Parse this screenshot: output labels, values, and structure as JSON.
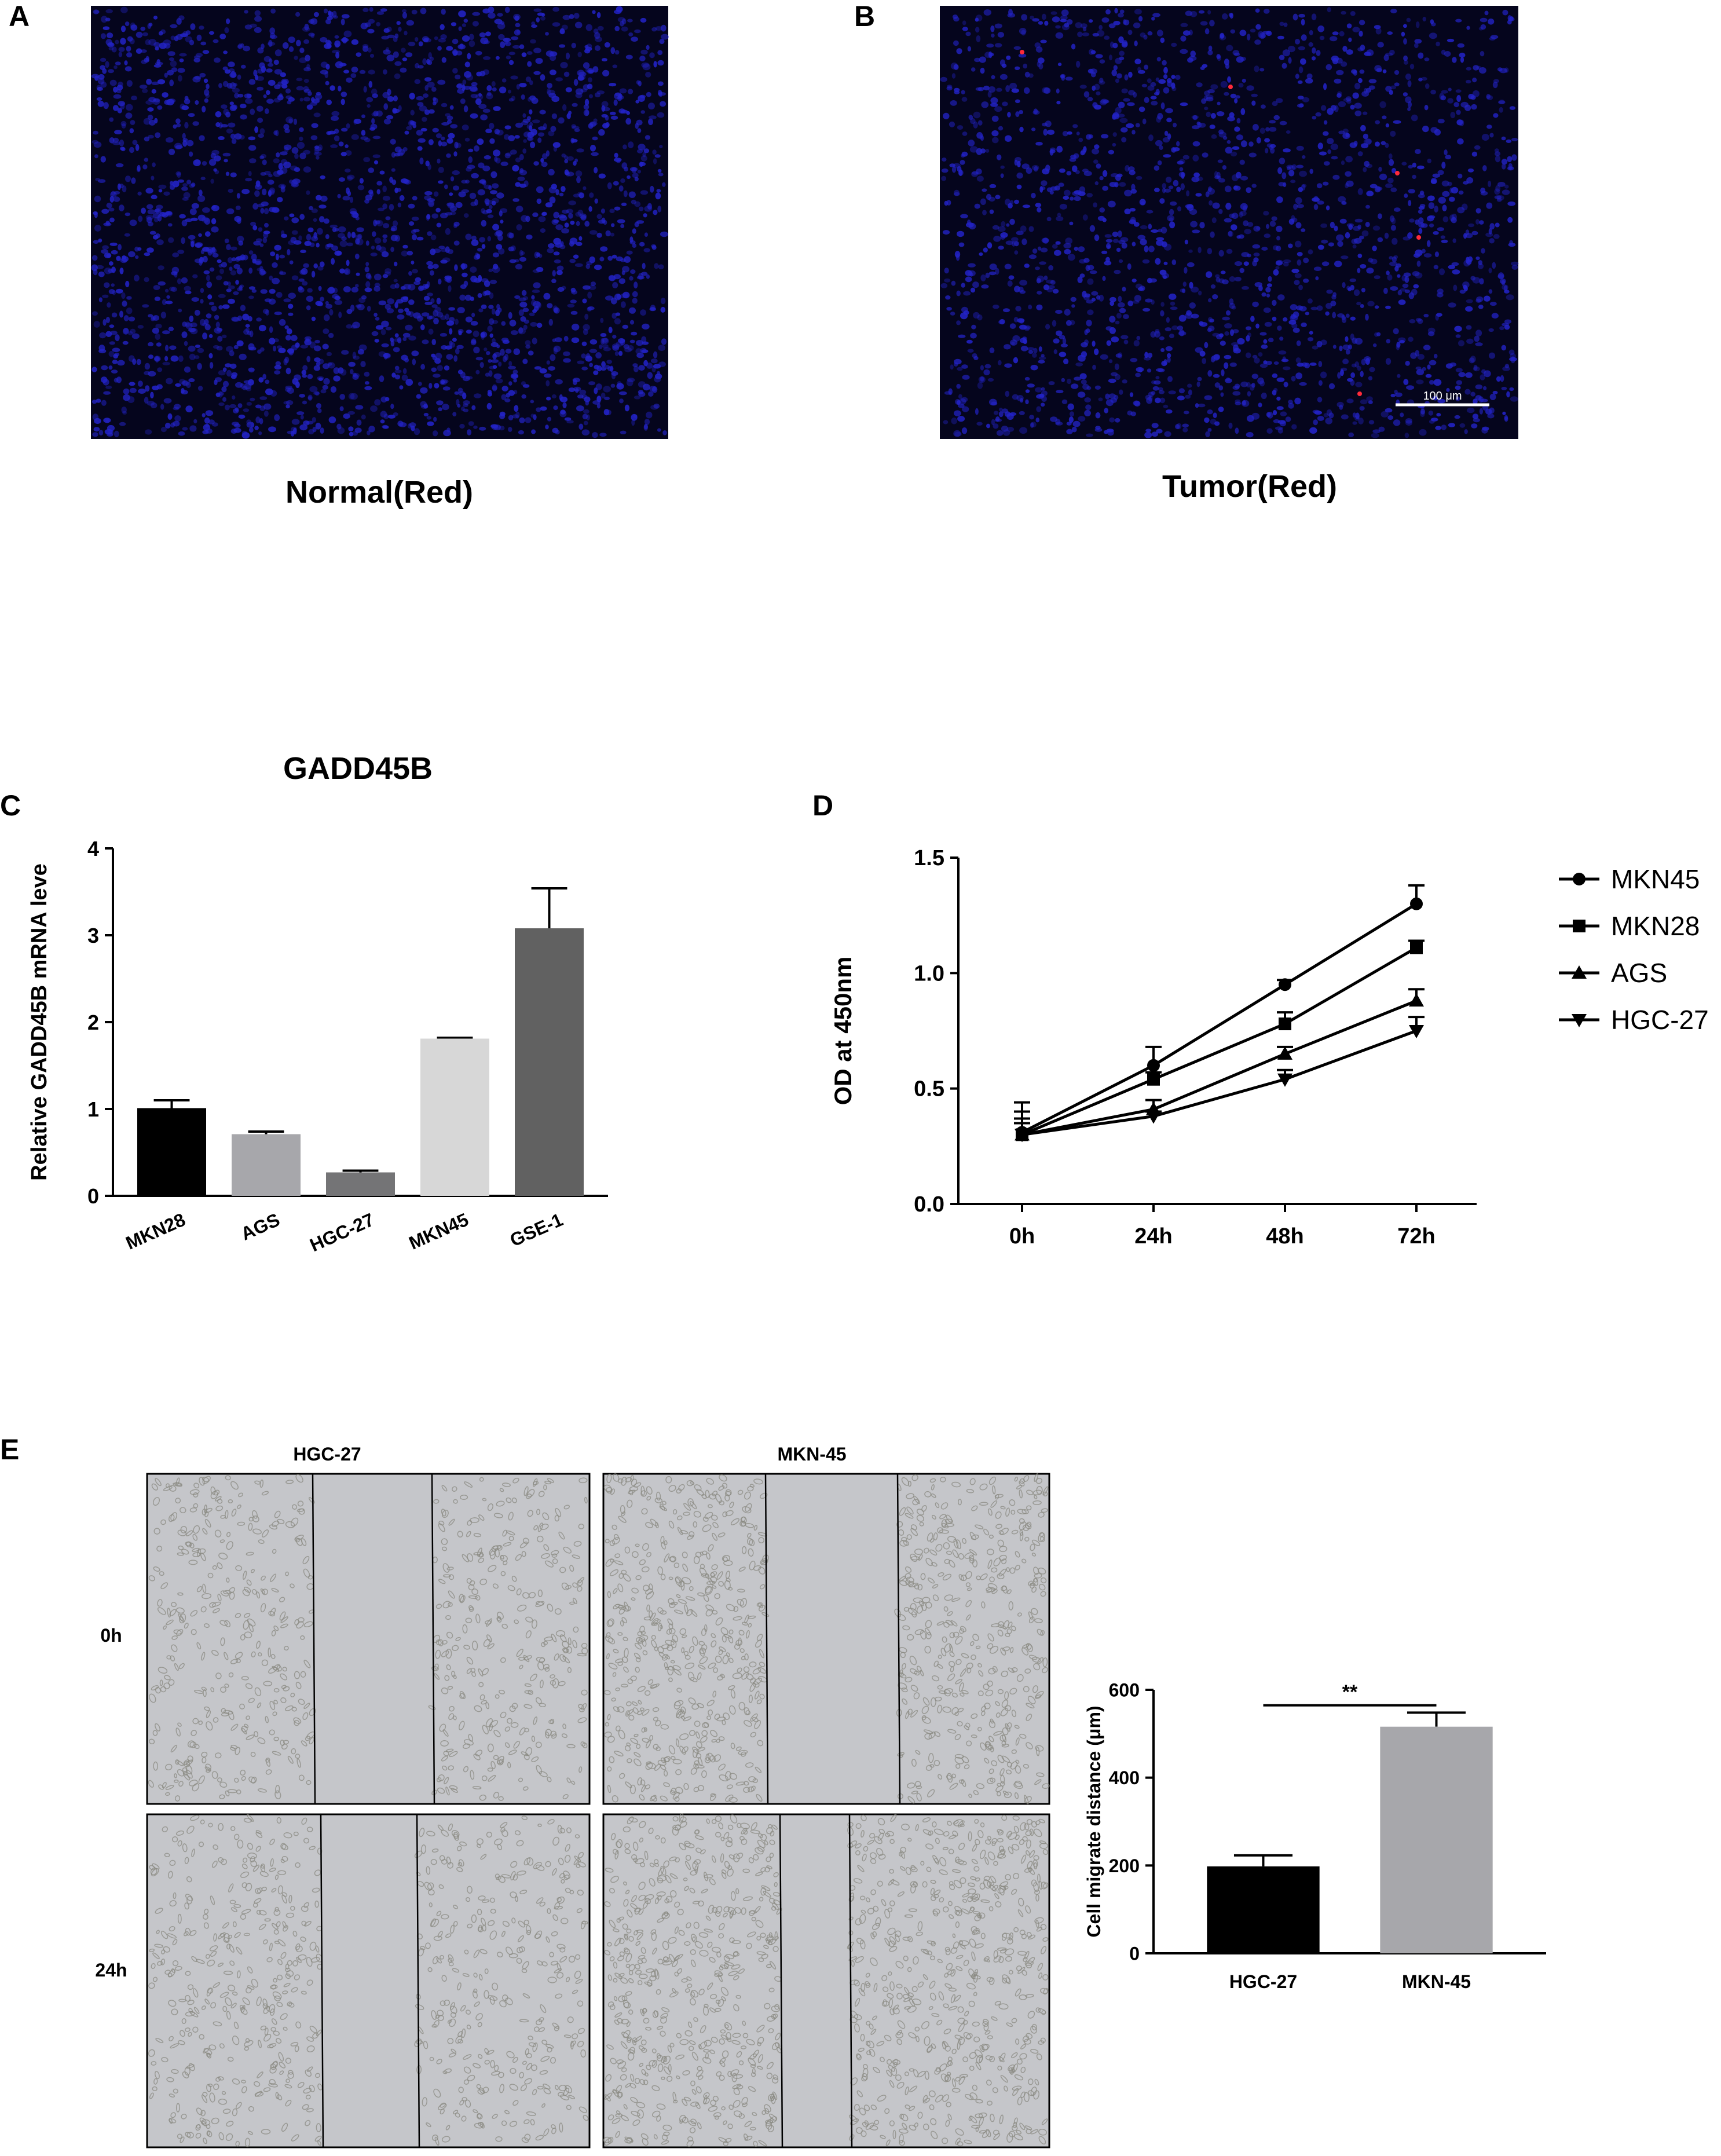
{
  "panels": {
    "a": {
      "letter": "A",
      "caption": "Normal(Red)"
    },
    "b": {
      "letter": "B",
      "caption": "Tumor(Red)",
      "scalebar": "100 μm"
    },
    "c": {
      "letter": "C"
    },
    "d": {
      "letter": "D"
    },
    "e": {
      "letter": "E",
      "columns": [
        "HGC-27",
        "MKN-45"
      ],
      "rows": [
        "0h",
        "24h"
      ]
    }
  },
  "colors": {
    "fluor_bg": "#05051d",
    "nuclei": "#2323c8",
    "red_signal": "#ff2a3a",
    "micro_bg": "#c5c6ca",
    "cell": "#8a8a82"
  },
  "chart_data": [
    {
      "id": "C",
      "type": "bar",
      "title": "GADD45B",
      "ylabel": "Relative GADD45B mRNA leve",
      "xlabel": "",
      "ylim": [
        0,
        4
      ],
      "yticks": [
        0,
        1,
        2,
        3,
        4
      ],
      "categories": [
        "MKN28",
        "AGS",
        "HGC-27",
        "MKN45",
        "GSE-1"
      ],
      "values": [
        1.01,
        0.71,
        0.27,
        1.81,
        3.08
      ],
      "errors": [
        0.09,
        0.03,
        0.02,
        0.01,
        0.46
      ],
      "colors": [
        "#000000",
        "#a7a7ab",
        "#747476",
        "#d7d7d7",
        "#616161"
      ]
    },
    {
      "id": "D",
      "type": "line",
      "ylabel": "OD at 450nm",
      "xlabel": "",
      "ylim": [
        0,
        1.5
      ],
      "yticks": [
        "0.0",
        "0.5",
        "1.0",
        "1.5"
      ],
      "x": [
        "0h",
        "24h",
        "48h",
        "72h"
      ],
      "series": [
        {
          "name": "MKN45",
          "marker": "circle",
          "values": [
            0.31,
            0.6,
            0.95,
            1.3
          ],
          "errors": [
            0.13,
            0.08,
            0.02,
            0.08
          ]
        },
        {
          "name": "MKN28",
          "marker": "square",
          "values": [
            0.3,
            0.54,
            0.78,
            1.11
          ],
          "errors": [
            0.1,
            0.03,
            0.05,
            0.03
          ]
        },
        {
          "name": "AGS",
          "marker": "triangle-up",
          "values": [
            0.3,
            0.41,
            0.65,
            0.88
          ],
          "errors": [
            0.07,
            0.04,
            0.03,
            0.05
          ]
        },
        {
          "name": "HGC-27",
          "marker": "triangle-down",
          "values": [
            0.3,
            0.38,
            0.54,
            0.75
          ],
          "errors": [
            0.05,
            0.02,
            0.04,
            0.06
          ]
        }
      ],
      "legend": "right"
    },
    {
      "id": "E",
      "type": "bar",
      "ylabel": "Cell migrate distance (μm)",
      "xlabel": "",
      "ylim": [
        0,
        600
      ],
      "yticks": [
        0,
        200,
        400,
        600
      ],
      "categories": [
        "HGC-27",
        "MKN-45"
      ],
      "values": [
        198,
        516
      ],
      "errors": [
        25,
        32
      ],
      "colors": [
        "#000000",
        "#a7a7ab"
      ],
      "significance": "**"
    }
  ]
}
